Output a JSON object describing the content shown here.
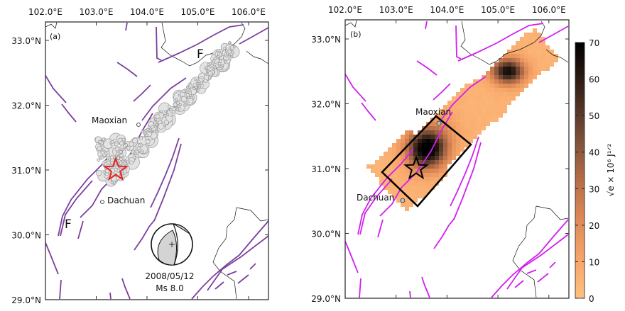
{
  "panel_a": {
    "label": "(a)",
    "fault_label_north": "F",
    "fault_label_south": "F",
    "city_1": "Maoxian",
    "city_2": "Dachuan",
    "event_date": "2008/05/12",
    "event_magnitude": "Ms 8.0"
  },
  "panel_b": {
    "label": "(b)",
    "city_1": "Maoxian",
    "city_2": "Dachuan",
    "colorbar_label": "√e × 10⁶ J¹ᐟ²"
  },
  "chart_data": {
    "type": "heatmap",
    "x_ticks": [
      "102.0°E",
      "103.0°E",
      "104.0°E",
      "105.0°E",
      "106.0°E"
    ],
    "y_ticks": [
      "33.0°N",
      "32.0°N",
      "31.0°N",
      "30.0°N",
      "29.0°N"
    ],
    "xlim": [
      102.0,
      106.4
    ],
    "ylim": [
      29.0,
      33.3
    ],
    "colorbar_ticks": [
      "70",
      "60",
      "50",
      "40",
      "30",
      "20",
      "10",
      "0"
    ],
    "colorbar_range": [
      0,
      70
    ],
    "epicenter": {
      "lon": 103.4,
      "lat": 31.0
    },
    "cities": [
      {
        "name": "Maoxian",
        "lon": 103.85,
        "lat": 31.68
      },
      {
        "name": "Dachuan",
        "lon": 103.1,
        "lat": 30.52
      }
    ],
    "peaks": [
      {
        "lon": 103.6,
        "lat": 31.3,
        "value": 70
      },
      {
        "lon": 105.2,
        "lat": 32.5,
        "value": 60
      }
    ]
  },
  "colors": {
    "fault_a": "#7b3f9e",
    "fault_b": "#d21ff0",
    "star_a": "#e8231f",
    "aftershock": "#e3e3e3"
  }
}
